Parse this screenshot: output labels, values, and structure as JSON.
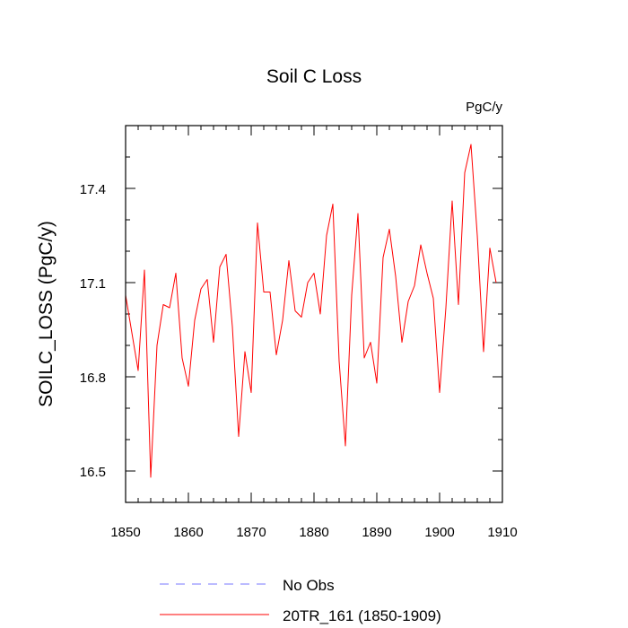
{
  "chart_data": {
    "type": "line",
    "title": "Soil C Loss",
    "units_label": "PgC/y",
    "xlabel": "",
    "ylabel": "SOILC_LOSS  (PgC/y)",
    "xlim": [
      1850,
      1910
    ],
    "ylim": [
      16.4,
      17.6
    ],
    "x_ticks": [
      1850,
      1860,
      1870,
      1880,
      1890,
      1900,
      1910
    ],
    "y_ticks": [
      16.5,
      16.8,
      17.1,
      17.4
    ],
    "x_tick_labels": [
      "1850",
      "1860",
      "1870",
      "1880",
      "1890",
      "1900",
      "1910"
    ],
    "y_tick_labels": [
      "16.5",
      "16.8",
      "17.1",
      "17.4"
    ],
    "grid": false,
    "legend_position": "bottom-left",
    "series": [
      {
        "name": "20TR_161 (1850-1909)",
        "color": "#ff0000",
        "style": "solid",
        "x": [
          1850,
          1851,
          1852,
          1853,
          1854,
          1855,
          1856,
          1857,
          1858,
          1859,
          1860,
          1861,
          1862,
          1863,
          1864,
          1865,
          1866,
          1867,
          1868,
          1869,
          1870,
          1871,
          1872,
          1873,
          1874,
          1875,
          1876,
          1877,
          1878,
          1879,
          1880,
          1881,
          1882,
          1883,
          1884,
          1885,
          1886,
          1887,
          1888,
          1889,
          1890,
          1891,
          1892,
          1893,
          1894,
          1895,
          1896,
          1897,
          1898,
          1899,
          1900,
          1901,
          1902,
          1903,
          1904,
          1905,
          1906,
          1907,
          1908,
          1909
        ],
        "values": [
          17.06,
          16.94,
          16.82,
          17.14,
          16.48,
          16.9,
          17.03,
          17.02,
          17.13,
          16.86,
          16.77,
          16.98,
          17.08,
          17.11,
          16.91,
          17.15,
          17.19,
          16.96,
          16.61,
          16.88,
          16.75,
          17.29,
          17.07,
          17.07,
          16.87,
          16.98,
          17.17,
          17.01,
          16.99,
          17.1,
          17.13,
          17.0,
          17.25,
          17.35,
          16.85,
          16.58,
          17.06,
          17.32,
          16.86,
          16.91,
          16.78,
          17.18,
          17.27,
          17.12,
          16.91,
          17.04,
          17.09,
          17.22,
          17.13,
          17.05,
          16.75,
          17.02,
          17.36,
          17.03,
          17.45,
          17.54,
          17.25,
          16.88,
          17.21,
          17.1
        ]
      },
      {
        "name": "No Obs",
        "color": "#7777ff",
        "style": "dashed",
        "x": [],
        "values": []
      }
    ]
  }
}
